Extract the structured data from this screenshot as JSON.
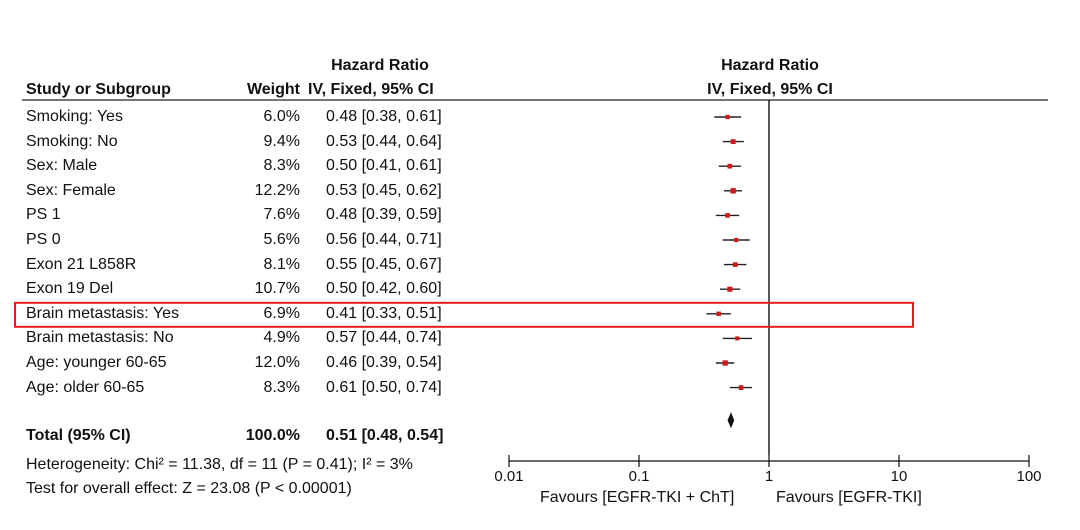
{
  "headers": {
    "study": "Study or Subgroup",
    "weight": "Weight",
    "hr_title": "Hazard Ratio",
    "hr_sub": "IV, Fixed, 95% CI",
    "plot_title": "Hazard Ratio",
    "plot_sub": "IV, Fixed, 95% CI"
  },
  "total": {
    "label": "Total (95% CI)",
    "weight": "100.0%",
    "ci_text": "0.51 [0.48, 0.54]",
    "hr": 0.51,
    "lo": 0.48,
    "hi": 0.54
  },
  "heterogeneity": "Heterogeneity: Chi² = 11.38, df = 11 (P = 0.41); I² = 3%",
  "overall_effect": "Test for overall effect: Z = 23.08 (P < 0.00001)",
  "favours": {
    "left": "Favours [EGFR-TKI + ChT]",
    "right": "Favours [EGFR-TKI]"
  },
  "highlight_color": "#e8191c",
  "marker_color": "#cc1b1b",
  "chart_data": {
    "type": "scatter",
    "scale": "log",
    "xlim": [
      0.01,
      100
    ],
    "ticks": [
      {
        "value": 0.01,
        "label": "0.01"
      },
      {
        "value": 0.1,
        "label": "0.1"
      },
      {
        "value": 1,
        "label": "1"
      },
      {
        "value": 10,
        "label": "10"
      },
      {
        "value": 100,
        "label": "100"
      }
    ],
    "highlighted_row": 8,
    "rows": [
      {
        "label": "Smoking: Yes",
        "weight": "6.0%",
        "ci_text": "0.48 [0.38, 0.61]",
        "hr": 0.48,
        "lo": 0.38,
        "hi": 0.61
      },
      {
        "label": "Smoking: No",
        "weight": "9.4%",
        "ci_text": "0.53 [0.44, 0.64]",
        "hr": 0.53,
        "lo": 0.44,
        "hi": 0.64
      },
      {
        "label": "Sex: Male",
        "weight": "8.3%",
        "ci_text": "0.50 [0.41, 0.61]",
        "hr": 0.5,
        "lo": 0.41,
        "hi": 0.61
      },
      {
        "label": "Sex: Female",
        "weight": "12.2%",
        "ci_text": "0.53 [0.45, 0.62]",
        "hr": 0.53,
        "lo": 0.45,
        "hi": 0.62
      },
      {
        "label": "PS 1",
        "weight": "7.6%",
        "ci_text": "0.48 [0.39, 0.59]",
        "hr": 0.48,
        "lo": 0.39,
        "hi": 0.59
      },
      {
        "label": "PS 0",
        "weight": "5.6%",
        "ci_text": "0.56 [0.44, 0.71]",
        "hr": 0.56,
        "lo": 0.44,
        "hi": 0.71
      },
      {
        "label": "Exon 21 L858R",
        "weight": "8.1%",
        "ci_text": "0.55 [0.45, 0.67]",
        "hr": 0.55,
        "lo": 0.45,
        "hi": 0.67
      },
      {
        "label": "Exon 19 Del",
        "weight": "10.7%",
        "ci_text": "0.50 [0.42, 0.60]",
        "hr": 0.5,
        "lo": 0.42,
        "hi": 0.6
      },
      {
        "label": "Brain metastasis: Yes",
        "weight": "6.9%",
        "ci_text": "0.41 [0.33, 0.51]",
        "hr": 0.41,
        "lo": 0.33,
        "hi": 0.51
      },
      {
        "label": "Brain metastasis: No",
        "weight": "4.9%",
        "ci_text": "0.57 [0.44, 0.74]",
        "hr": 0.57,
        "lo": 0.44,
        "hi": 0.74
      },
      {
        "label": "Age: younger 60-65",
        "weight": "12.0%",
        "ci_text": "0.46 [0.39, 0.54]",
        "hr": 0.46,
        "lo": 0.39,
        "hi": 0.54
      },
      {
        "label": "Age: older 60-65",
        "weight": "8.3%",
        "ci_text": "0.61 [0.50, 0.74]",
        "hr": 0.61,
        "lo": 0.5,
        "hi": 0.74
      }
    ]
  }
}
